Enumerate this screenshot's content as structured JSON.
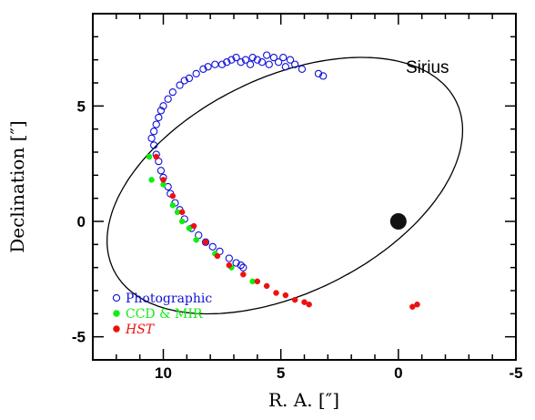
{
  "chart_data": {
    "type": "scatter",
    "title": "",
    "annotation": "Sirius",
    "xlabel": "R. A. [″]",
    "ylabel": "Declination [″]",
    "xlim": [
      13,
      -5
    ],
    "ylim": [
      -6,
      9
    ],
    "x_ticks": [
      10,
      5,
      0,
      -5
    ],
    "y_ticks": [
      5,
      0,
      -5
    ],
    "grid": false,
    "legend_position": "bottom-left",
    "primary_star": {
      "x": 0,
      "y": 0
    },
    "orbit": {
      "center": [
        4.83,
        1.55
      ],
      "semi_major": 8.15,
      "semi_minor": 4.65,
      "rotation_deg": -27
    },
    "series": [
      {
        "name": "Photographic",
        "color": "#1010d8",
        "marker": "open-circle",
        "points": [
          [
            3.2,
            6.3
          ],
          [
            3.4,
            6.4
          ],
          [
            4.1,
            6.6
          ],
          [
            4.4,
            6.8
          ],
          [
            4.6,
            7.0
          ],
          [
            4.8,
            6.7
          ],
          [
            4.9,
            7.1
          ],
          [
            5.1,
            6.9
          ],
          [
            5.3,
            7.1
          ],
          [
            5.5,
            6.8
          ],
          [
            5.6,
            7.2
          ],
          [
            5.8,
            6.9
          ],
          [
            6.0,
            7.0
          ],
          [
            6.2,
            7.1
          ],
          [
            6.3,
            6.8
          ],
          [
            6.5,
            7.0
          ],
          [
            6.7,
            6.9
          ],
          [
            6.9,
            7.1
          ],
          [
            7.1,
            7.0
          ],
          [
            7.3,
            6.9
          ],
          [
            7.5,
            6.8
          ],
          [
            7.8,
            6.8
          ],
          [
            8.1,
            6.7
          ],
          [
            8.3,
            6.6
          ],
          [
            8.6,
            6.4
          ],
          [
            8.9,
            6.2
          ],
          [
            9.1,
            6.1
          ],
          [
            9.3,
            5.9
          ],
          [
            9.6,
            5.6
          ],
          [
            9.8,
            5.3
          ],
          [
            10.0,
            5.0
          ],
          [
            10.1,
            4.8
          ],
          [
            10.2,
            4.5
          ],
          [
            10.3,
            4.2
          ],
          [
            10.4,
            3.9
          ],
          [
            10.5,
            3.6
          ],
          [
            10.4,
            3.3
          ],
          [
            10.3,
            2.9
          ],
          [
            10.2,
            2.6
          ],
          [
            10.1,
            2.2
          ],
          [
            10.0,
            1.9
          ],
          [
            9.8,
            1.5
          ],
          [
            9.7,
            1.2
          ],
          [
            9.5,
            0.8
          ],
          [
            9.3,
            0.5
          ],
          [
            9.1,
            0.1
          ],
          [
            8.8,
            -0.3
          ],
          [
            8.5,
            -0.6
          ],
          [
            8.2,
            -0.9
          ],
          [
            7.9,
            -1.1
          ],
          [
            7.6,
            -1.3
          ],
          [
            7.2,
            -1.6
          ],
          [
            6.9,
            -1.8
          ],
          [
            6.7,
            -1.9
          ],
          [
            6.6,
            -2.0
          ]
        ]
      },
      {
        "name": "CCD & MIR",
        "color": "#10ee10",
        "marker": "filled-circle",
        "points": [
          [
            10.6,
            2.8
          ],
          [
            10.5,
            1.8
          ],
          [
            10.0,
            1.6
          ],
          [
            9.6,
            0.7
          ],
          [
            9.4,
            0.4
          ],
          [
            9.2,
            0.0
          ],
          [
            8.9,
            -0.3
          ],
          [
            8.6,
            -0.8
          ],
          [
            8.2,
            -0.9
          ],
          [
            7.8,
            -1.4
          ],
          [
            7.1,
            -2.0
          ],
          [
            6.2,
            -2.6
          ]
        ]
      },
      {
        "name": "HST",
        "color": "#ee1010",
        "marker": "filled-circle",
        "points": [
          [
            10.3,
            2.8
          ],
          [
            10.0,
            1.8
          ],
          [
            9.6,
            1.1
          ],
          [
            9.2,
            0.4
          ],
          [
            8.7,
            -0.2
          ],
          [
            8.2,
            -0.9
          ],
          [
            7.7,
            -1.5
          ],
          [
            7.2,
            -1.9
          ],
          [
            6.6,
            -2.3
          ],
          [
            6.0,
            -2.6
          ],
          [
            5.6,
            -2.8
          ],
          [
            5.2,
            -3.1
          ],
          [
            4.8,
            -3.2
          ],
          [
            4.4,
            -3.4
          ],
          [
            4.0,
            -3.5
          ],
          [
            3.8,
            -3.6
          ],
          [
            -0.6,
            -3.7
          ],
          [
            -0.8,
            -3.6
          ]
        ]
      }
    ]
  }
}
